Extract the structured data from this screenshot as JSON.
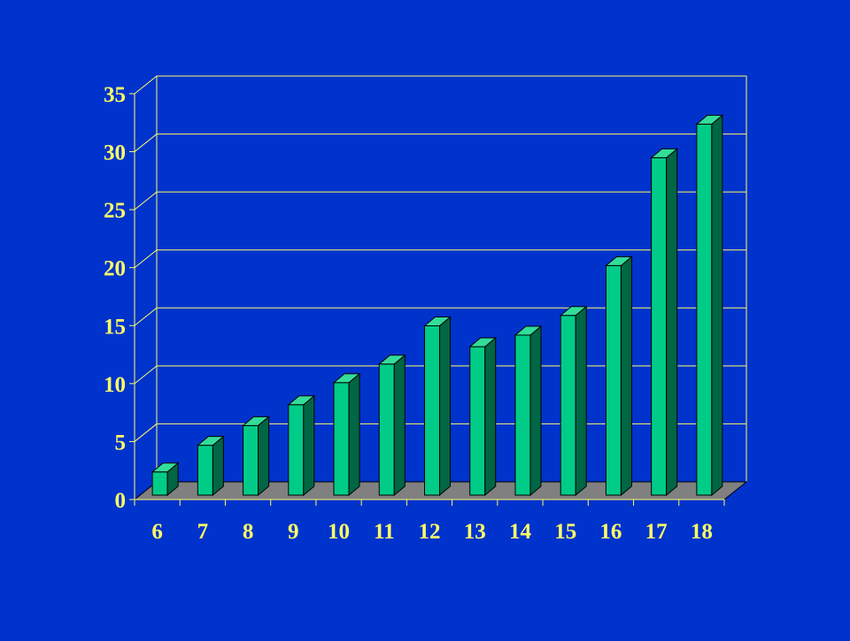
{
  "chart_data": {
    "type": "bar",
    "style": "3d-column",
    "title": "",
    "xlabel": "",
    "ylabel": "",
    "categories": [
      "6",
      "7",
      "8",
      "9",
      "10",
      "11",
      "12",
      "13",
      "14",
      "15",
      "16",
      "17",
      "18"
    ],
    "values": [
      2,
      4.3,
      6,
      7.8,
      9.7,
      11.3,
      14.6,
      12.8,
      13.8,
      15.5,
      19.8,
      29.1,
      32
    ],
    "ylim": [
      0,
      35
    ],
    "yticks": [
      0,
      5,
      10,
      15,
      20,
      25,
      30,
      35
    ],
    "grid": true,
    "legend": "none"
  },
  "colors": {
    "background": "#0033cc",
    "bar_front": "#00cc88",
    "bar_side": "#006644",
    "bar_top": "#33dd99",
    "bar_edge": "#000000",
    "grid": "#ffff66",
    "floor": "#808080",
    "text": "#ffff66"
  }
}
